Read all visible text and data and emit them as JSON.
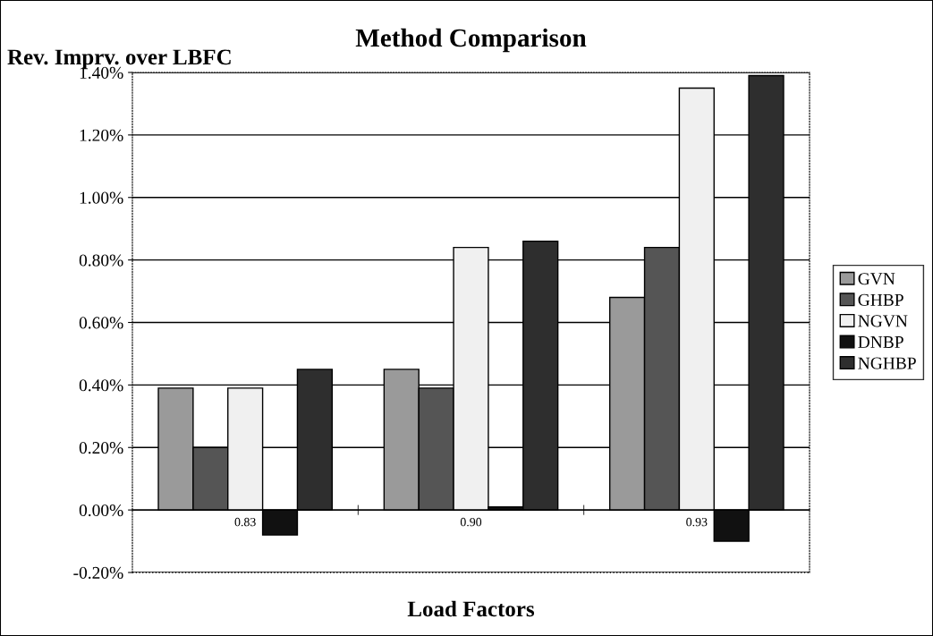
{
  "chart_data": {
    "type": "bar",
    "title": "Method Comparison",
    "ylabel": "Rev. Imprv. over LBFC",
    "xlabel": "Load Factors",
    "categories": [
      "0.83",
      "0.90",
      "0.93"
    ],
    "series": [
      {
        "name": "GVN",
        "color": "#9a9a9a",
        "values": [
          0.39,
          0.45,
          0.68
        ]
      },
      {
        "name": "GHBP",
        "color": "#555555",
        "values": [
          0.2,
          0.39,
          0.84
        ]
      },
      {
        "name": "NGVN",
        "color": "#f0f0f0",
        "values": [
          0.39,
          0.84,
          1.35
        ]
      },
      {
        "name": "DNBP",
        "color": "#111111",
        "values": [
          -0.08,
          0.01,
          -0.1
        ]
      },
      {
        "name": "NGHBP",
        "color": "#2e2e2e",
        "values": [
          0.45,
          0.86,
          1.39
        ]
      }
    ],
    "ylim": [
      -0.2,
      1.4
    ],
    "yticks": [
      {
        "value": -0.2,
        "label": "-0.20%"
      },
      {
        "value": 0,
        "label": "0.00%"
      },
      {
        "value": 0.2,
        "label": "0.20%"
      },
      {
        "value": 0.4,
        "label": "0.40%"
      },
      {
        "value": 0.6,
        "label": "0.60%"
      },
      {
        "value": 0.8,
        "label": "0.80%"
      },
      {
        "value": 1.0,
        "label": "1.00%"
      },
      {
        "value": 1.2,
        "label": "1.20%"
      },
      {
        "value": 1.4,
        "label": "1.40%"
      }
    ],
    "grid": "y",
    "legend": "right"
  }
}
